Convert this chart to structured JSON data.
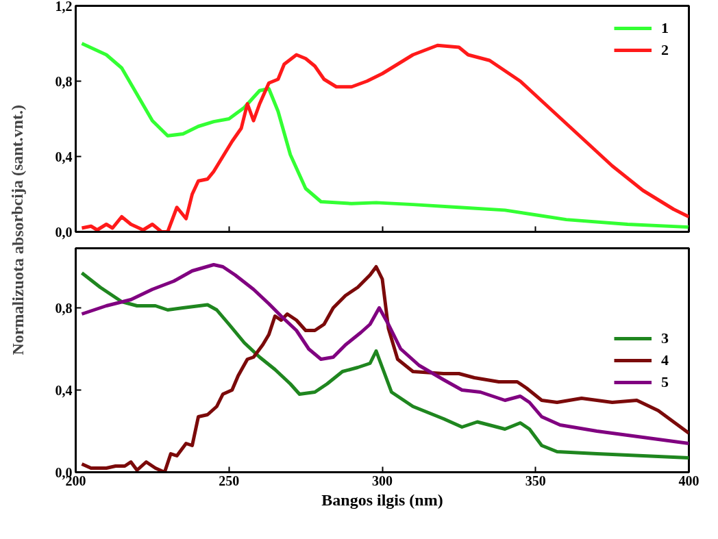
{
  "chart_data": [
    {
      "type": "line",
      "ylabel": "Normalizuota absorbcija (sant.vnt.)",
      "xlim": [
        200,
        400
      ],
      "xticks": [
        200,
        250,
        300,
        350,
        400
      ],
      "ylim": [
        0,
        1.2
      ],
      "yticks": [
        {
          "value": 0,
          "label": "0,0"
        },
        {
          "value": 0.4,
          "label": "0,4"
        },
        {
          "value": 0.8,
          "label": "0,8"
        },
        {
          "value": 1.2,
          "label": "1,2"
        }
      ],
      "tick_labels": "y",
      "grid": false,
      "legend": "top right",
      "marker": "none",
      "line_style": "solid",
      "series": [
        {
          "name": "1",
          "color": "#33ff33",
          "x": [
            202,
            210,
            215,
            220,
            225,
            230,
            235,
            240,
            245,
            250,
            255,
            260,
            263,
            266,
            270,
            275,
            280,
            290,
            298,
            310,
            325,
            340,
            350,
            360,
            380,
            400
          ],
          "values": [
            1.0,
            0.94,
            0.87,
            0.73,
            0.59,
            0.51,
            0.52,
            0.56,
            0.585,
            0.6,
            0.66,
            0.75,
            0.76,
            0.64,
            0.41,
            0.23,
            0.16,
            0.15,
            0.155,
            0.145,
            0.13,
            0.115,
            0.09,
            0.065,
            0.04,
            0.025
          ]
        },
        {
          "name": "2",
          "color": "#ff1a1a",
          "x": [
            202,
            205,
            207,
            210,
            212,
            215,
            218,
            222,
            225,
            228,
            230,
            233,
            236,
            238,
            240,
            243,
            245,
            248,
            251,
            254,
            256,
            258,
            260,
            263,
            266,
            268,
            272,
            275,
            278,
            281,
            285,
            290,
            295,
            300,
            310,
            318,
            325,
            328,
            335,
            345,
            355,
            365,
            375,
            385,
            395,
            400
          ],
          "values": [
            0.02,
            0.03,
            0.01,
            0.04,
            0.02,
            0.08,
            0.04,
            0.01,
            0.04,
            0.0,
            0.0,
            0.13,
            0.07,
            0.2,
            0.27,
            0.28,
            0.32,
            0.4,
            0.48,
            0.55,
            0.68,
            0.59,
            0.68,
            0.79,
            0.81,
            0.89,
            0.94,
            0.92,
            0.88,
            0.81,
            0.77,
            0.77,
            0.8,
            0.84,
            0.94,
            0.99,
            0.98,
            0.94,
            0.91,
            0.8,
            0.65,
            0.5,
            0.35,
            0.22,
            0.12,
            0.08
          ]
        }
      ]
    },
    {
      "type": "line",
      "xlabel": "Bangos ilgis (nm)",
      "xlim": [
        200,
        400
      ],
      "xticks": [
        200,
        250,
        300,
        350,
        400
      ],
      "ylim": [
        0,
        1.09
      ],
      "yticks": [
        {
          "value": 0,
          "label": "0,0"
        },
        {
          "value": 0.4,
          "label": "0,4"
        },
        {
          "value": 0.8,
          "label": "0,8"
        }
      ],
      "grid": false,
      "legend": "right",
      "marker": "none",
      "line_style": "solid",
      "series": [
        {
          "name": "3",
          "color": "#1f861f",
          "x": [
            202,
            208,
            215,
            220,
            226,
            230,
            235,
            243,
            246,
            250,
            255,
            260,
            265,
            270,
            273,
            278,
            282,
            287,
            292,
            296,
            298,
            300,
            303,
            310,
            320,
            326,
            331,
            340,
            345,
            348,
            352,
            357,
            370,
            385,
            400
          ],
          "values": [
            0.97,
            0.9,
            0.83,
            0.81,
            0.81,
            0.79,
            0.8,
            0.815,
            0.79,
            0.72,
            0.63,
            0.56,
            0.5,
            0.43,
            0.38,
            0.39,
            0.43,
            0.49,
            0.51,
            0.53,
            0.59,
            0.51,
            0.39,
            0.32,
            0.26,
            0.22,
            0.245,
            0.21,
            0.24,
            0.21,
            0.13,
            0.1,
            0.09,
            0.08,
            0.07
          ]
        },
        {
          "name": "4",
          "color": "#7b0a0a",
          "x": [
            202,
            205,
            210,
            213,
            216,
            218,
            220,
            223,
            226,
            229,
            231,
            233,
            236,
            238,
            240,
            243,
            246,
            248,
            251,
            253,
            256,
            258,
            261,
            263,
            265,
            267,
            269,
            272,
            275,
            278,
            281,
            284,
            288,
            292,
            296,
            298,
            300,
            302,
            305,
            310,
            320,
            325,
            330,
            338,
            344,
            347,
            352,
            357,
            365,
            375,
            383,
            390,
            400
          ],
          "values": [
            0.04,
            0.02,
            0.02,
            0.03,
            0.03,
            0.05,
            0.01,
            0.05,
            0.02,
            0.0,
            0.09,
            0.08,
            0.14,
            0.13,
            0.27,
            0.28,
            0.32,
            0.38,
            0.4,
            0.47,
            0.55,
            0.56,
            0.62,
            0.67,
            0.76,
            0.74,
            0.77,
            0.74,
            0.69,
            0.69,
            0.72,
            0.8,
            0.86,
            0.9,
            0.96,
            1.0,
            0.94,
            0.7,
            0.55,
            0.49,
            0.48,
            0.48,
            0.46,
            0.44,
            0.44,
            0.41,
            0.35,
            0.34,
            0.36,
            0.34,
            0.35,
            0.3,
            0.19
          ]
        },
        {
          "name": "5",
          "color": "#800080",
          "x": [
            202,
            210,
            218,
            225,
            232,
            238,
            245,
            248,
            252,
            258,
            263,
            267,
            272,
            276,
            280,
            284,
            288,
            293,
            296,
            299,
            302,
            306,
            312,
            320,
            326,
            332,
            336,
            340,
            345,
            348,
            352,
            358,
            370,
            385,
            400
          ],
          "values": [
            0.77,
            0.81,
            0.84,
            0.89,
            0.93,
            0.98,
            1.01,
            1.0,
            0.96,
            0.89,
            0.82,
            0.76,
            0.69,
            0.6,
            0.55,
            0.56,
            0.62,
            0.68,
            0.72,
            0.8,
            0.72,
            0.6,
            0.52,
            0.45,
            0.4,
            0.39,
            0.37,
            0.35,
            0.37,
            0.34,
            0.27,
            0.23,
            0.2,
            0.17,
            0.14
          ]
        }
      ]
    }
  ]
}
